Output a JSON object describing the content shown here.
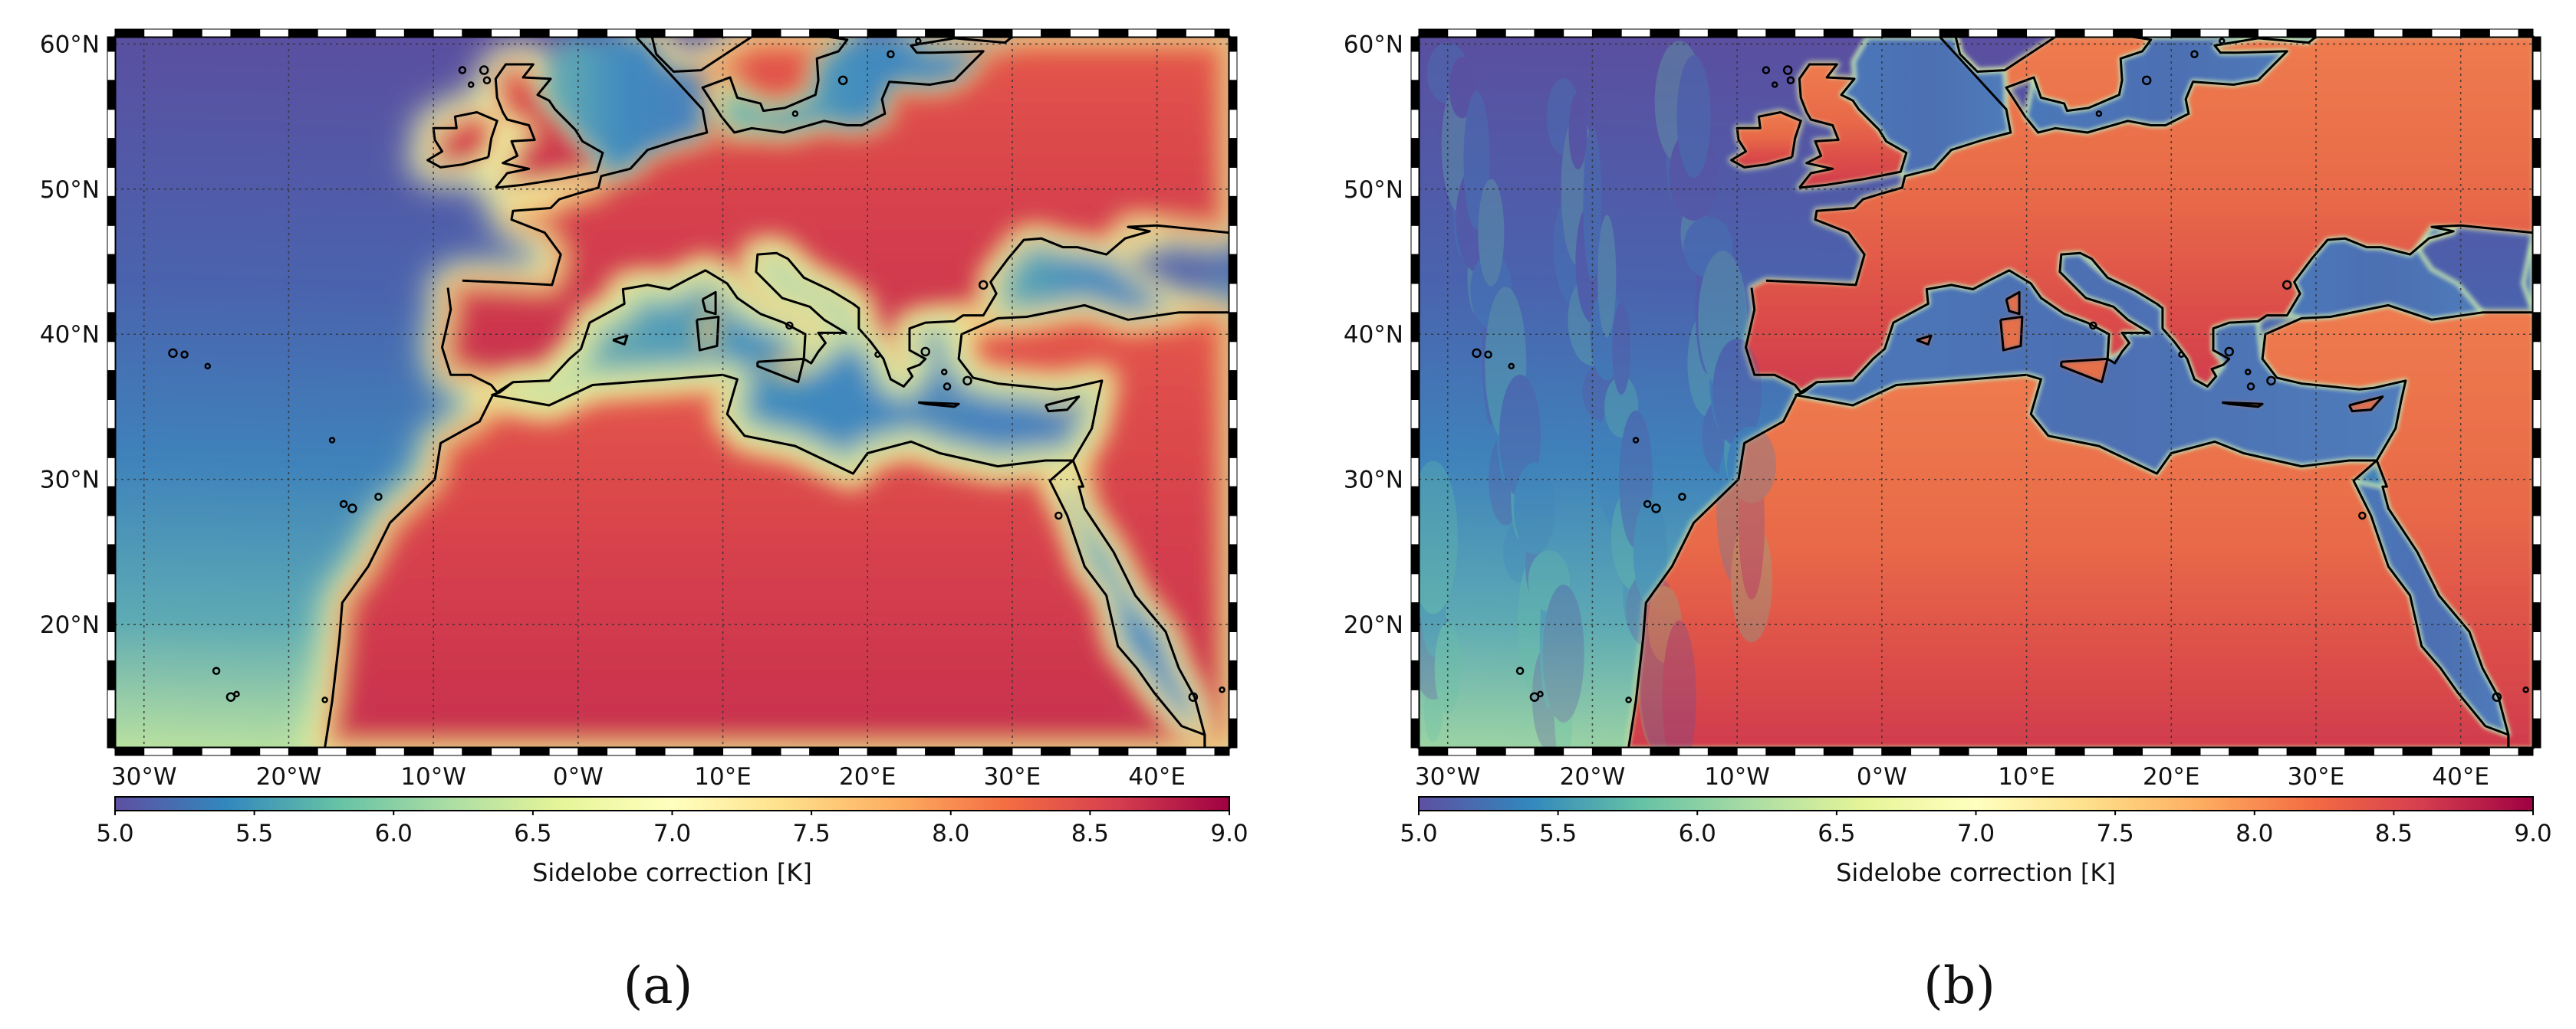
{
  "panels": [
    {
      "label": "(a)",
      "variant": "smooth",
      "lat_ticks": [
        "60°N",
        "50°N",
        "40°N",
        "30°N",
        "20°N"
      ],
      "lon_ticks": [
        "30°W",
        "20°W",
        "10°W",
        "0°W",
        "10°E",
        "20°E",
        "30°E",
        "40°E"
      ],
      "colorbar": {
        "ticks": [
          "5.0",
          "5.5",
          "6.0",
          "6.5",
          "7.0",
          "7.5",
          "8.0",
          "8.5",
          "9.0"
        ],
        "label": "Sidelobe correction [K]"
      }
    },
    {
      "label": "(b)",
      "variant": "sharp",
      "lat_ticks": [
        "60°N",
        "50°N",
        "40°N",
        "30°N",
        "20°N"
      ],
      "lon_ticks": [
        "30°W",
        "20°W",
        "10°W",
        "0°W",
        "10°E",
        "20°E",
        "30°E",
        "40°E"
      ],
      "colorbar": {
        "ticks": [
          "5.0",
          "5.5",
          "6.0",
          "6.5",
          "7.0",
          "7.5",
          "8.0",
          "8.5",
          "9.0"
        ],
        "label": "Sidelobe correction [K]"
      }
    }
  ],
  "map": {
    "lon_range": [
      -32,
      45
    ],
    "lat_range": [
      11.5,
      60.5
    ],
    "projection": "equirectangular",
    "gridlines": true,
    "colormap": "Spectral_r",
    "colormap_stops": [
      "#5e4fa2",
      "#3288bd",
      "#66c2a5",
      "#abdda4",
      "#e6f598",
      "#ffffbf",
      "#fee08b",
      "#fdae61",
      "#f46d43",
      "#d53e4f",
      "#9e0142"
    ]
  }
}
